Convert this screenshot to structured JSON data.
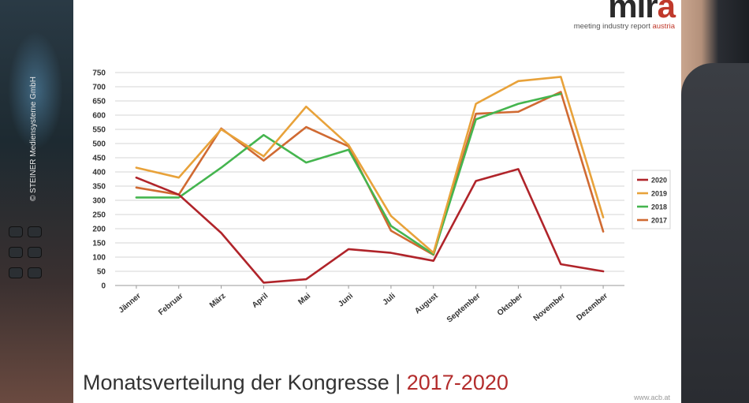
{
  "photo_credit": "© STEINER Mediensysteme GmbH",
  "logo": {
    "mark_main": "mir",
    "mark_accent": "a",
    "subtitle_main": "meeting industry report ",
    "subtitle_accent": "austria"
  },
  "title": {
    "main": "Monatsverteilung der Kongresse | ",
    "years": "2017-2020"
  },
  "footer_url": "www.acb.at",
  "colors": {
    "2020": "#b0242a",
    "2019": "#e8a23a",
    "2018": "#45b54f",
    "2017": "#d06a32"
  },
  "chart_data": {
    "type": "line",
    "categories": [
      "Jänner",
      "Februar",
      "März",
      "April",
      "Mai",
      "Juni",
      "Juli",
      "August",
      "September",
      "Oktober",
      "November",
      "Dezember"
    ],
    "ylim": [
      0,
      750
    ],
    "yticks": [
      0,
      50,
      100,
      150,
      200,
      250,
      300,
      350,
      400,
      450,
      500,
      550,
      600,
      650,
      700,
      750
    ],
    "grid": true,
    "legend_position": "right",
    "series": [
      {
        "name": "2020",
        "color": "#b0242a",
        "values": [
          380,
          320,
          185,
          10,
          22,
          128,
          115,
          87,
          368,
          410,
          75,
          50
        ]
      },
      {
        "name": "2019",
        "color": "#e8a23a",
        "values": [
          415,
          380,
          550,
          455,
          630,
          495,
          245,
          115,
          640,
          720,
          735,
          240
        ]
      },
      {
        "name": "2018",
        "color": "#45b54f",
        "values": [
          310,
          310,
          415,
          530,
          433,
          478,
          210,
          110,
          585,
          640,
          675,
          null
        ]
      },
      {
        "name": "2017",
        "color": "#d06a32",
        "values": [
          345,
          320,
          553,
          440,
          558,
          490,
          193,
          108,
          605,
          612,
          682,
          190
        ]
      }
    ]
  }
}
